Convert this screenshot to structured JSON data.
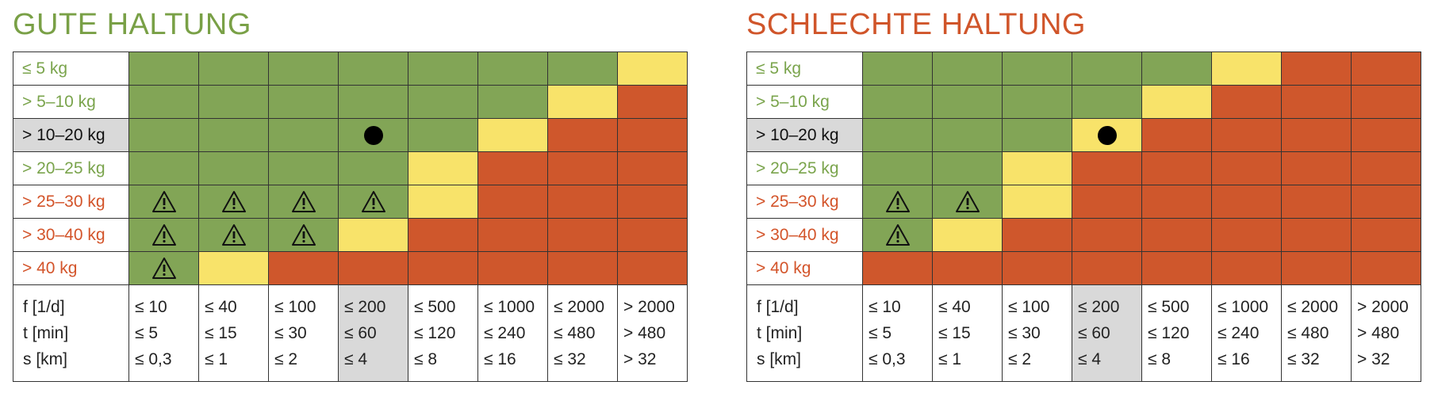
{
  "colors": {
    "green": "#82a556",
    "yellow": "#f8e36a",
    "red": "#cf572c",
    "label_green": "#7aa44c",
    "label_red": "#d3542a",
    "label_black": "#111111",
    "title_green": "#79a046",
    "title_red": "#d0552a"
  },
  "footer": {
    "labels": [
      "f [1/d]",
      "t [min]",
      "s [km]"
    ],
    "columns": [
      {
        "f": "≤ 10",
        "t": "≤ 5",
        "s": "≤ 0,3"
      },
      {
        "f": "≤ 40",
        "t": "≤ 15",
        "s": "≤ 1"
      },
      {
        "f": "≤ 100",
        "t": "≤ 30",
        "s": "≤ 2"
      },
      {
        "f": "≤ 200",
        "t": "≤ 60",
        "s": "≤ 4"
      },
      {
        "f": "≤ 500",
        "t": "≤ 120",
        "s": "≤ 8"
      },
      {
        "f": "≤ 1000",
        "t": "≤ 240",
        "s": "≤ 16"
      },
      {
        "f": "≤ 2000",
        "t": "≤ 480",
        "s": "≤ 32"
      },
      {
        "f": "> 2000",
        "t": "> 480",
        "s": "> 32"
      }
    ],
    "selected_column": 3
  },
  "panels": [
    {
      "title": "GUTE HALTUNG",
      "title_color": "title_green",
      "rows": [
        {
          "label": "≤ 5 kg",
          "color": "label_green",
          "cells": "GGGGGGGY"
        },
        {
          "label": "> 5–10 kg",
          "color": "label_green",
          "cells": "GGGGGGYR"
        },
        {
          "label": "> 10–20 kg",
          "color": "label_black",
          "selected": true,
          "cells": "GGGGGYRR"
        },
        {
          "label": "> 20–25 kg",
          "color": "label_green",
          "cells": "GGGGYRRR"
        },
        {
          "label": "> 25–30 kg",
          "color": "label_red",
          "cells": "GGGGYRRR"
        },
        {
          "label": "> 30–40 kg",
          "color": "label_red",
          "cells": "GGGYRRRR"
        },
        {
          "label": "> 40 kg",
          "color": "label_red",
          "cells": "GYRRRRRR"
        }
      ],
      "marker": {
        "row": 2,
        "col": 3
      },
      "warnings": [
        [
          4,
          0
        ],
        [
          4,
          1
        ],
        [
          4,
          2
        ],
        [
          4,
          3
        ],
        [
          5,
          0
        ],
        [
          5,
          1
        ],
        [
          5,
          2
        ],
        [
          6,
          0
        ]
      ]
    },
    {
      "title": "SCHLECHTE HALTUNG",
      "title_color": "title_red",
      "rows": [
        {
          "label": "≤ 5 kg",
          "color": "label_green",
          "cells": "GGGGGYRR"
        },
        {
          "label": "> 5–10 kg",
          "color": "label_green",
          "cells": "GGGGYRRR"
        },
        {
          "label": "> 10–20 kg",
          "color": "label_black",
          "selected": true,
          "cells": "GGGYRRRR"
        },
        {
          "label": "> 20–25 kg",
          "color": "label_green",
          "cells": "GGYRRRRR"
        },
        {
          "label": "> 25–30 kg",
          "color": "label_red",
          "cells": "GGYRRRRR"
        },
        {
          "label": "> 30–40 kg",
          "color": "label_red",
          "cells": "GYRRRRRR"
        },
        {
          "label": "> 40 kg",
          "color": "label_red",
          "cells": "RRRRRRRR"
        }
      ],
      "marker": {
        "row": 2,
        "col": 3
      },
      "warnings": [
        [
          4,
          0
        ],
        [
          4,
          1
        ],
        [
          5,
          0
        ]
      ]
    }
  ]
}
